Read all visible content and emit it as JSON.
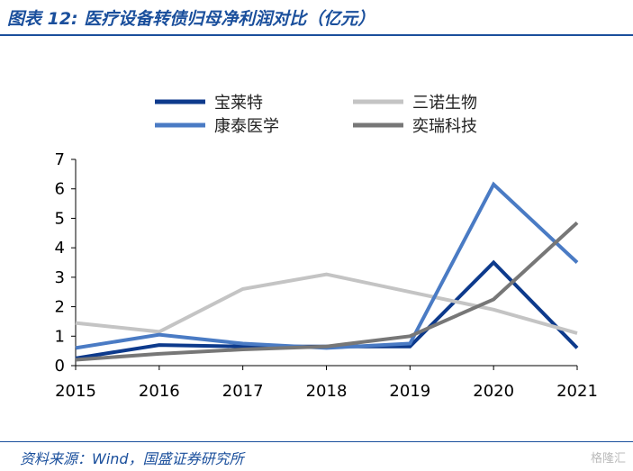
{
  "header": {
    "title": "图表 12: 医疗设备转债归母净利润对比（亿元）"
  },
  "footer": {
    "source": "资料来源：Wind，国盛证券研究所",
    "watermark": "格隆汇"
  },
  "chart_data": {
    "type": "line",
    "title": "图表 12: 医疗设备转债归母净利润对比（亿元）",
    "xlabel": "",
    "ylabel": "",
    "x": [
      "2015",
      "2016",
      "2017",
      "2018",
      "2019",
      "2020",
      "2021"
    ],
    "ylim": [
      0,
      7
    ],
    "yticks": [
      0,
      1,
      2,
      3,
      4,
      5,
      6,
      7
    ],
    "grid": false,
    "legend_position": "top",
    "series": [
      {
        "name": "宝莱特",
        "color": "#0d3a8c",
        "values": [
          0.25,
          0.7,
          0.65,
          0.65,
          0.65,
          3.5,
          0.6
        ]
      },
      {
        "name": "三诺生物",
        "color": "#c4c4c4",
        "values": [
          1.45,
          1.15,
          2.6,
          3.1,
          2.5,
          1.9,
          1.1
        ]
      },
      {
        "name": "康泰医学",
        "color": "#4a7bc4",
        "values": [
          0.6,
          1.05,
          0.75,
          0.6,
          0.75,
          6.15,
          3.5
        ]
      },
      {
        "name": "奕瑞科技",
        "color": "#777777",
        "values": [
          0.2,
          0.4,
          0.55,
          0.65,
          1.0,
          2.25,
          4.85
        ]
      }
    ]
  }
}
